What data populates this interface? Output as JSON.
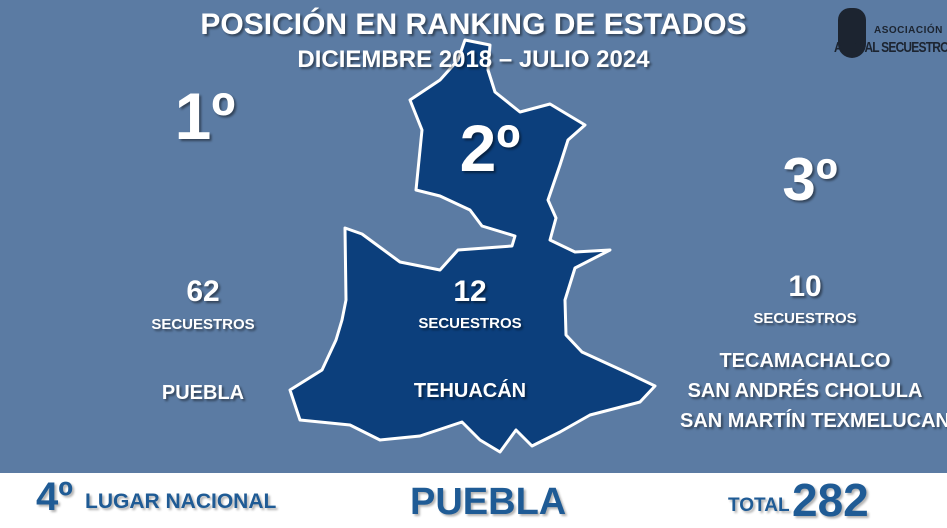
{
  "title": "POSICIÓN EN RANKING DE ESTADOS",
  "subtitle": "DICIEMBRE 2018 – JULIO 2024",
  "logo": {
    "text": "ALTO AL SECUESTRO",
    "small": "ASOCIACIÓN"
  },
  "rankings": [
    {
      "position": "1º",
      "count": "62",
      "unit": "SECUESTROS",
      "places": [
        "PUEBLA"
      ]
    },
    {
      "position": "2º",
      "count": "12",
      "unit": "SECUESTROS",
      "places": [
        "TEHUACÁN"
      ]
    },
    {
      "position": "3º",
      "count": "10",
      "unit": "SECUESTROS",
      "places": [
        "TECAMACHALCO",
        "SAN ANDRÉS CHOLULA",
        "SAN MARTÍN TEXMELUCAN"
      ]
    }
  ],
  "footer": {
    "national_position": "4º",
    "national_label": "LUGAR NACIONAL",
    "state": "PUEBLA",
    "total_label": "TOTAL",
    "total": "282"
  },
  "colors": {
    "background": "#5b7ba3",
    "map": "#0c3f7c",
    "footer_text": "#1f5b95"
  }
}
